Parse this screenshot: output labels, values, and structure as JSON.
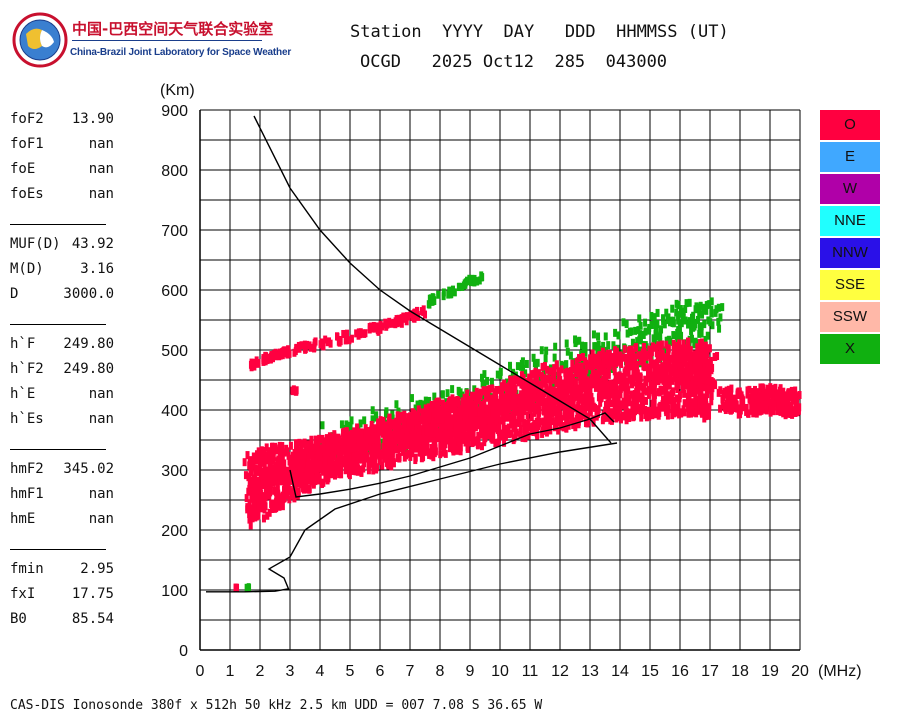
{
  "logo": {
    "name_cn": "中国-巴西空间天气联合实验室",
    "name_en": "China-Brazil Joint Laboratory for Space Weather"
  },
  "header": {
    "labels": "Station  YYYY  DAY   DDD  HHMMSS (UT)",
    "values": "OCGD   2025 Oct12  285  043000"
  },
  "parameters": {
    "group1": [
      {
        "name": "foF2",
        "value": "13.90"
      },
      {
        "name": "foF1",
        "value": "nan"
      },
      {
        "name": "foE",
        "value": "nan"
      },
      {
        "name": "foEs",
        "value": "nan"
      }
    ],
    "group2": [
      {
        "name": "MUF(D)",
        "value": "43.92"
      },
      {
        "name": "M(D)",
        "value": "3.16"
      },
      {
        "name": "D",
        "value": "3000.0"
      }
    ],
    "group3": [
      {
        "name": "h`F",
        "value": "249.80"
      },
      {
        "name": "h`F2",
        "value": "249.80"
      },
      {
        "name": "h`E",
        "value": "nan"
      },
      {
        "name": "h`Es",
        "value": "nan"
      }
    ],
    "group4": [
      {
        "name": "hmF2",
        "value": "345.02"
      },
      {
        "name": "hmF1",
        "value": "nan"
      },
      {
        "name": "hmE",
        "value": "nan"
      }
    ],
    "group5": [
      {
        "name": "fmin",
        "value": "2.95"
      },
      {
        "name": "fxI",
        "value": "17.75"
      },
      {
        "name": "B0",
        "value": "85.54"
      }
    ]
  },
  "legend": [
    {
      "label": "O",
      "color": "#ff0040"
    },
    {
      "label": "E",
      "color": "#40a8ff"
    },
    {
      "label": "W",
      "color": "#b000a8"
    },
    {
      "label": "NNE",
      "color": "#20ffff"
    },
    {
      "label": "NNW",
      "color": "#2a10e8"
    },
    {
      "label": "SSE",
      "color": "#ffff40"
    },
    {
      "label": "SSW",
      "color": "#ffb8a8"
    },
    {
      "label": "X",
      "color": "#10b010"
    }
  ],
  "footer": "CAS-DIS Ionosonde 380f x 512h 50 kHz 2.5 km UDD = 007 7.08 S 36.65 W",
  "chart_data": {
    "type": "scatter",
    "ylabel": "(Km)",
    "xlabel": "(MHz)",
    "xlim": [
      0,
      20
    ],
    "ylim": [
      0,
      900
    ],
    "xticks": [
      0,
      1,
      2,
      3,
      4,
      5,
      6,
      7,
      8,
      9,
      10,
      11,
      12,
      13,
      14,
      15,
      16,
      17,
      18,
      19,
      20
    ],
    "yticks": [
      0,
      100,
      200,
      300,
      400,
      500,
      600,
      700,
      800,
      900
    ],
    "grid": true,
    "series": [
      {
        "name": "O",
        "color": "#ff0040",
        "traces": [
          {
            "x": [
              1.7,
              2.2,
              2.6,
              3.0
            ],
            "y": [
              475,
              485,
              492,
              498
            ]
          },
          {
            "x": [
              3.0,
              4.0,
              5.0,
              6.0,
              7.0,
              7.5
            ],
            "y": [
              498,
              510,
              523,
              538,
              555,
              565
            ]
          },
          {
            "x": [
              1.6,
              2.5,
              3.5,
              4.5,
              5.5,
              6.5,
              7.5,
              8.5,
              9.5,
              10.5,
              11.5,
              12.5,
              13.5,
              14.5,
              15.5,
              16.5,
              17.0
            ],
            "y": [
              240,
              270,
              300,
              320,
              330,
              345,
              355,
              365,
              375,
              385,
              395,
              405,
              415,
              420,
              425,
              430,
              420
            ]
          },
          {
            "x": [
              1.7,
              2.5,
              3.5,
              4.5,
              5.5,
              6.5,
              7.5,
              8.5,
              9.5,
              10.5,
              11.5,
              12.5,
              13.5,
              14.5,
              15.5,
              16.5,
              17.0
            ],
            "y": [
              300,
              310,
              320,
              330,
              345,
              360,
              375,
              390,
              405,
              420,
              440,
              455,
              470,
              475,
              480,
              485,
              470
            ]
          },
          {
            "x": [
              17.5,
              18.0,
              18.5,
              19.0,
              19.5,
              20.0
            ],
            "y": [
              420,
              410,
              415,
              420,
              410,
              415
            ]
          },
          {
            "x": [
              3.0,
              3.3
            ],
            "y": [
              435,
              428
            ]
          },
          {
            "x": [
              1.2
            ],
            "y": [
              103
            ]
          }
        ]
      },
      {
        "name": "X",
        "color": "#10b010",
        "traces": [
          {
            "x": [
              7.5,
              8.0,
              8.5,
              9.0,
              9.4
            ],
            "y": [
              575,
              590,
              600,
              615,
              622
            ]
          },
          {
            "x": [
              4.5,
              6.5,
              8.5,
              10.5,
              12.5,
              14.5,
              16.0,
              17.0
            ],
            "y": [
              340,
              370,
              400,
              440,
              480,
              510,
              540,
              550
            ]
          },
          {
            "x": [
              1.6
            ],
            "y": [
              103
            ]
          }
        ]
      }
    ],
    "curves": [
      {
        "name": "ordinary-trace-model",
        "x": [
          1.8,
          3.0,
          4.0,
          5.0,
          6.0,
          7.0,
          8.0,
          9.0,
          10.0,
          11.0,
          12.0,
          13.0,
          13.7
        ],
        "y": [
          890,
          770,
          700,
          645,
          600,
          565,
          535,
          505,
          475,
          445,
          415,
          385,
          345
        ]
      },
      {
        "name": "true-height-profile",
        "x": [
          0.2,
          1.5,
          2.5,
          2.95,
          2.8,
          2.3,
          2.4,
          3.0,
          3.5,
          4.5,
          6.0,
          8.0,
          10.0,
          12.0,
          13.9
        ],
        "y": [
          97,
          97,
          98,
          102,
          120,
          135,
          138,
          155,
          200,
          235,
          260,
          285,
          310,
          330,
          345
        ]
      },
      {
        "name": "virtual-height-fit",
        "x": [
          3.0,
          3.2,
          4.0,
          5.0,
          6.0,
          7.0,
          8.0,
          9.0,
          10.0,
          11.0,
          12.0,
          13.0,
          13.5,
          13.8
        ],
        "y": [
          300,
          255,
          260,
          268,
          278,
          290,
          305,
          320,
          340,
          360,
          370,
          385,
          395,
          380
        ]
      }
    ]
  }
}
